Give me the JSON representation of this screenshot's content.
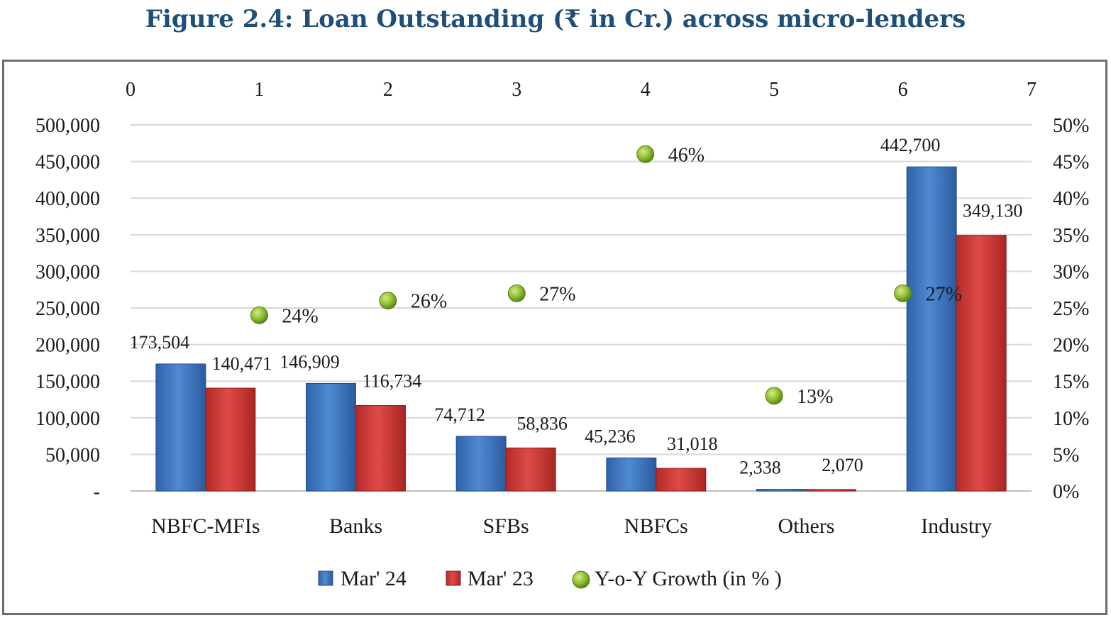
{
  "title": "Figure 2.4: Loan Outstanding (₹ in Cr.) across micro-lenders",
  "colors": {
    "title": "#1f4e79",
    "mar24": "#3f7bc4",
    "mar23": "#d23b38",
    "growth": "#8dbf2e",
    "grid": "#d9d9d9"
  },
  "chart_data": {
    "type": "bar",
    "categories": [
      "NBFC-MFIs",
      "Banks",
      "SFBs",
      "NBFCs",
      "Others",
      "Industry"
    ],
    "series": [
      {
        "name": "Mar' 24",
        "values": [
          173504,
          146909,
          74712,
          45236,
          2338,
          442700
        ],
        "labels": [
          "173,504",
          "146,909",
          "74,712",
          "45,236",
          "2,338",
          "442,700"
        ]
      },
      {
        "name": "Mar' 23",
        "values": [
          140471,
          116734,
          58836,
          31018,
          2070,
          349130
        ],
        "labels": [
          "140,471",
          "116,734",
          "58,836",
          "31,018",
          "2,070",
          "349,130"
        ]
      }
    ],
    "growth": {
      "name": "Y-o-Y Growth (in % )",
      "x": [
        1,
        2,
        3,
        4,
        5,
        6
      ],
      "values": [
        24,
        26,
        27,
        46,
        13,
        27
      ],
      "labels": [
        "24%",
        "26%",
        "27%",
        "46%",
        "13%",
        "27%"
      ]
    },
    "ylim": [
      0,
      500000
    ],
    "y_ticks": [
      "-",
      "50,000",
      "100,000",
      "150,000",
      "200,000",
      "250,000",
      "300,000",
      "350,000",
      "400,000",
      "450,000",
      "500,000"
    ],
    "y2lim": [
      0,
      50
    ],
    "y2_ticks": [
      "0%",
      "5%",
      "10%",
      "15%",
      "20%",
      "25%",
      "30%",
      "35%",
      "40%",
      "45%",
      "50%"
    ],
    "x2lim": [
      0,
      7
    ],
    "x2_ticks": [
      "0",
      "1",
      "2",
      "3",
      "4",
      "5",
      "6",
      "7"
    ],
    "grid": true,
    "legend_position": "bottom"
  }
}
